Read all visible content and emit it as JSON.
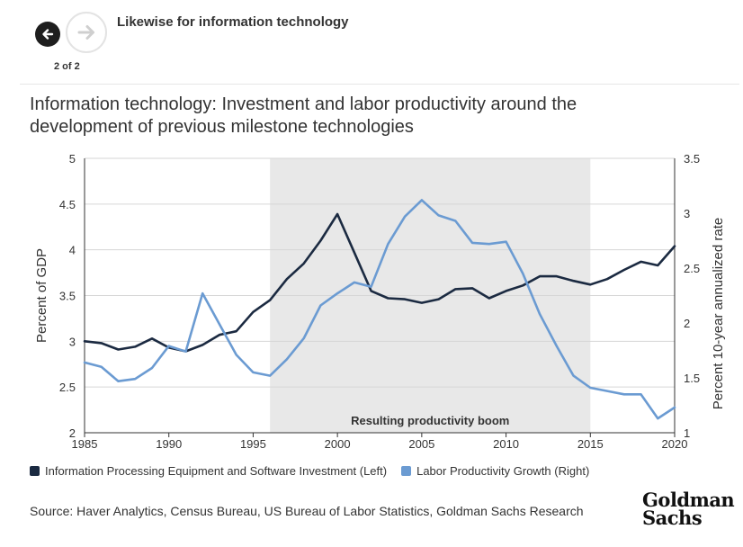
{
  "nav": {
    "back_icon": "arrow-left-icon",
    "forward_icon": "arrow-right-icon",
    "slide_title": "Likewise for information technology",
    "slide_counter": "2 of 2"
  },
  "chart": {
    "title": "Information technology: Investment and labor productivity around the development of previous milestone technologies",
    "left_axis_label": "Percent of GDP",
    "right_axis_label": "Percent 10-year annualized rate",
    "shaded_label": "Resulting productivity boom",
    "legend": [
      {
        "label": "Information Processing Equipment and Software Investment (Left)",
        "color": "#1b2a41"
      },
      {
        "label": "Labor Productivity Growth (Right)",
        "color": "#6b9bd2"
      }
    ]
  },
  "chart_data": {
    "type": "line",
    "x": [
      1985,
      1986,
      1987,
      1988,
      1989,
      1990,
      1991,
      1992,
      1993,
      1994,
      1995,
      1996,
      1997,
      1998,
      1999,
      2000,
      2001,
      2002,
      2003,
      2004,
      2005,
      2006,
      2007,
      2008,
      2009,
      2010,
      2011,
      2012,
      2013,
      2014,
      2015,
      2016,
      2017,
      2018,
      2019,
      2020
    ],
    "xlim": [
      1985,
      2020
    ],
    "xticks": [
      "1985",
      "1990",
      "1995",
      "2000",
      "2005",
      "2010",
      "2015",
      "2020"
    ],
    "y_left_lim": [
      2,
      5
    ],
    "y_left_ticks": [
      "2",
      "2.5",
      "3",
      "3.5",
      "4",
      "4.5",
      "5"
    ],
    "y_right_lim": [
      1,
      3.5
    ],
    "y_right_ticks": [
      "1",
      "1.5",
      "2",
      "2.5",
      "3",
      "3.5"
    ],
    "shaded_region": [
      1996,
      2015
    ],
    "grid": true,
    "legend_position": "bottom",
    "series": [
      {
        "name": "Information Processing Equipment and Software Investment (Left)",
        "axis": "left",
        "color": "#1b2a41",
        "values": [
          3.0,
          2.98,
          2.91,
          2.94,
          3.03,
          2.93,
          2.89,
          2.96,
          3.07,
          3.11,
          3.32,
          3.45,
          3.68,
          3.85,
          4.1,
          4.39,
          3.97,
          3.55,
          3.47,
          3.46,
          3.42,
          3.46,
          3.57,
          3.58,
          3.47,
          3.55,
          3.61,
          3.71,
          3.71,
          3.66,
          3.62,
          3.68,
          3.78,
          3.87,
          3.83,
          4.04
        ]
      },
      {
        "name": "Labor Productivity Growth (Right)",
        "axis": "right",
        "color": "#6b9bd2",
        "values": [
          1.64,
          1.6,
          1.47,
          1.49,
          1.59,
          1.79,
          1.74,
          2.27,
          1.99,
          1.71,
          1.55,
          1.52,
          1.67,
          1.86,
          2.16,
          2.27,
          2.37,
          2.33,
          2.72,
          2.97,
          3.12,
          2.98,
          2.93,
          2.73,
          2.72,
          2.74,
          2.45,
          2.08,
          1.79,
          1.52,
          1.41,
          1.38,
          1.35,
          1.35,
          1.13,
          1.23
        ]
      }
    ]
  },
  "footer": {
    "source": "Source: Haver Analytics, Census Bureau, US Bureau of Labor Statistics, Goldman Sachs Research",
    "logo_line1": "Goldman",
    "logo_line2": "Sachs"
  }
}
